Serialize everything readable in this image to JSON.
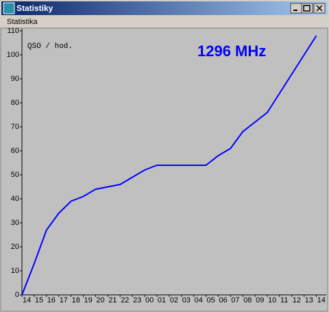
{
  "window": {
    "title": "Statistiky",
    "menu": [
      "Statistika"
    ]
  },
  "chart_data": {
    "type": "line",
    "annotations": [
      "QSO / hod.",
      "1296 MHz"
    ],
    "categories": [
      "14",
      "15",
      "16",
      "17",
      "18",
      "19",
      "20",
      "21",
      "22",
      "23",
      "00",
      "01",
      "02",
      "03",
      "04",
      "05",
      "06",
      "07",
      "08",
      "09",
      "10",
      "11",
      "12",
      "13",
      "14"
    ],
    "series": [
      {
        "color": "#0000ff",
        "values": [
          0,
          13,
          27,
          34,
          39,
          41,
          44,
          45,
          46,
          49,
          52,
          54,
          54,
          54,
          54,
          54,
          58,
          61,
          68,
          72,
          76,
          84,
          92,
          100,
          108
        ]
      }
    ],
    "ylim": [
      0,
      110
    ],
    "yticks": [
      0,
      10,
      20,
      30,
      40,
      50,
      60,
      70,
      80,
      90,
      100,
      110
    ]
  }
}
